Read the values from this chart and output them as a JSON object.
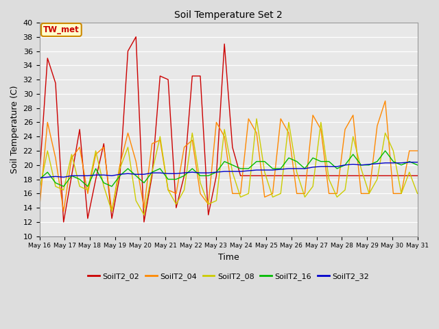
{
  "title": "Soil Temperature Set 2",
  "xlabel": "Time",
  "ylabel": "Soil Temperature (C)",
  "ylim": [
    10,
    40
  ],
  "legend_entries": [
    "SoilT2_02",
    "SoilT2_04",
    "SoilT2_08",
    "SoilT2_16",
    "SoilT2_32"
  ],
  "colors": {
    "SoilT2_02": "#cc0000",
    "SoilT2_04": "#ff8800",
    "SoilT2_08": "#cccc00",
    "SoilT2_16": "#00bb00",
    "SoilT2_32": "#0000cc"
  },
  "annotation_text": "TW_met",
  "annotation_color": "#cc0000",
  "annotation_bg": "#ffffcc",
  "annotation_border": "#cc8800",
  "background_color": "#dddddd",
  "plot_bg": "#e8e8e8",
  "x_labels": [
    "May 16",
    "May 17",
    "May 18",
    "May 19",
    "May 20",
    "May 21",
    "May 22",
    "May 23",
    "May 24",
    "May 25",
    "May 26",
    "May 27",
    "May 28",
    "May 29",
    "May 30",
    "May 31"
  ],
  "SoilT2_02": [
    18.5,
    35.0,
    31.5,
    12.0,
    18.5,
    25.0,
    12.5,
    18.0,
    23.0,
    12.5,
    18.5,
    36.0,
    38.0,
    12.0,
    18.5,
    32.5,
    32.0,
    14.0,
    18.5,
    32.5,
    32.5,
    13.0,
    18.5,
    37.0,
    22.5,
    18.5,
    18.5,
    18.5,
    18.5,
    18.5,
    18.5,
    18.5,
    18.5,
    18.5,
    18.5,
    18.5,
    18.5,
    18.5,
    18.5,
    18.5,
    18.5,
    18.5,
    18.5,
    18.5,
    18.5,
    18.5,
    18.5,
    18.5
  ],
  "SoilT2_04": [
    14.0,
    26.0,
    21.0,
    13.5,
    21.0,
    22.5,
    16.0,
    21.5,
    22.5,
    13.5,
    20.0,
    24.5,
    20.5,
    14.0,
    23.0,
    23.5,
    16.5,
    16.0,
    22.5,
    23.5,
    16.0,
    14.5,
    26.0,
    24.0,
    16.0,
    16.0,
    26.5,
    24.5,
    15.5,
    16.0,
    26.5,
    24.5,
    16.0,
    16.0,
    27.0,
    25.0,
    16.0,
    16.0,
    25.0,
    27.0,
    16.0,
    16.0,
    25.5,
    29.0,
    16.0,
    16.0,
    22.0,
    22.0
  ],
  "SoilT2_08": [
    16.5,
    22.0,
    17.0,
    16.5,
    21.5,
    17.0,
    16.5,
    22.0,
    17.0,
    13.5,
    19.5,
    22.5,
    15.0,
    13.0,
    19.0,
    24.0,
    16.5,
    14.5,
    16.5,
    24.5,
    17.5,
    14.5,
    15.0,
    25.0,
    19.0,
    15.5,
    16.0,
    26.5,
    19.0,
    15.5,
    16.0,
    26.0,
    19.0,
    15.5,
    17.0,
    26.0,
    18.0,
    15.5,
    16.5,
    24.0,
    19.5,
    16.0,
    18.0,
    24.5,
    22.0,
    16.0,
    19.0,
    16.0
  ],
  "SoilT2_16": [
    18.0,
    19.0,
    17.5,
    17.0,
    18.5,
    18.0,
    17.0,
    19.5,
    17.5,
    17.0,
    18.5,
    19.5,
    18.5,
    17.5,
    19.0,
    19.5,
    18.0,
    18.0,
    18.5,
    19.5,
    18.5,
    18.5,
    19.0,
    20.5,
    20.0,
    19.5,
    19.5,
    20.5,
    20.5,
    19.5,
    19.5,
    21.0,
    20.5,
    19.5,
    21.0,
    20.5,
    20.5,
    19.5,
    20.0,
    21.5,
    20.0,
    20.0,
    20.5,
    22.0,
    20.5,
    20.0,
    20.5,
    20.0
  ],
  "SoilT2_32": [
    18.2,
    18.3,
    18.4,
    18.3,
    18.5,
    18.5,
    18.5,
    18.6,
    18.6,
    18.5,
    18.7,
    18.8,
    18.7,
    18.7,
    18.9,
    18.9,
    18.8,
    18.8,
    18.9,
    19.0,
    18.9,
    18.9,
    19.0,
    19.1,
    19.1,
    19.1,
    19.2,
    19.3,
    19.3,
    19.3,
    19.4,
    19.5,
    19.5,
    19.5,
    19.7,
    19.8,
    19.8,
    19.8,
    20.0,
    20.1,
    20.0,
    20.1,
    20.2,
    20.3,
    20.3,
    20.3,
    20.4,
    20.4
  ]
}
